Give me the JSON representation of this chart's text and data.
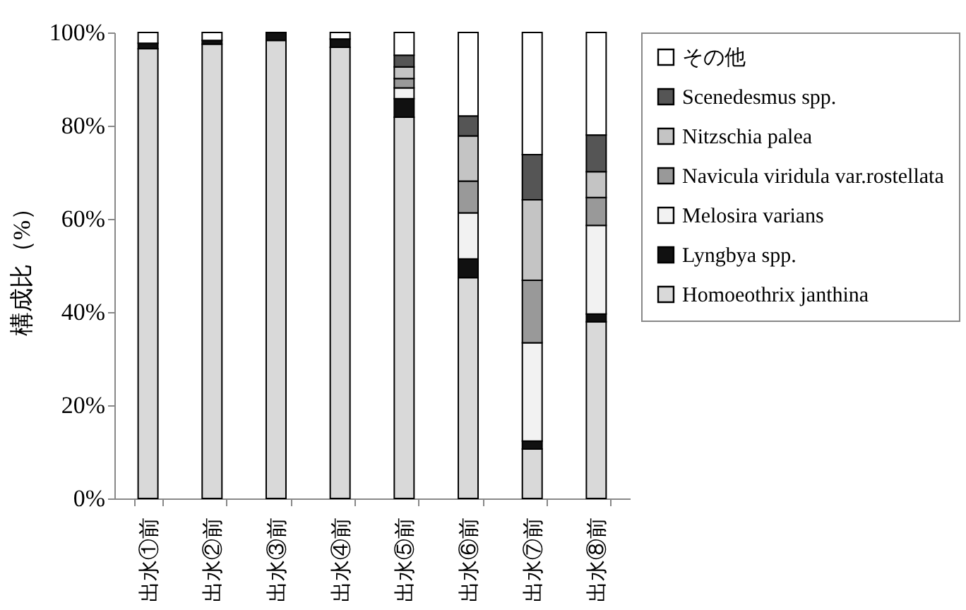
{
  "chart_data": {
    "type": "bar",
    "stacked": true,
    "ylabel": "構成比（%）",
    "categories": [
      "出水①前",
      "出水②前",
      "出水③前",
      "出水④前",
      "出水⑤前",
      "出水⑥前",
      "出水⑦前",
      "出水⑧前"
    ],
    "series": [
      {
        "name": "Homoeothrix janthina",
        "color": "#d9d9d9",
        "values": [
          96.5,
          97.5,
          98.3,
          96.8,
          81.8,
          47.4,
          10.6,
          37.9
        ]
      },
      {
        "name": "Lyngbya spp.",
        "color": "#111111",
        "values": [
          1.2,
          0.8,
          1.7,
          1.8,
          4.0,
          4.0,
          1.7,
          1.7
        ]
      },
      {
        "name": "Melosira varians",
        "color": "#f2f2f2",
        "values": [
          0,
          0,
          0,
          0,
          2.3,
          9.9,
          21.1,
          19.0
        ]
      },
      {
        "name": "Navicula viridula var.rostellata",
        "color": "#999999",
        "values": [
          0,
          0,
          0,
          0,
          2.0,
          6.8,
          13.4,
          6.0
        ]
      },
      {
        "name": "Nitzschia palea",
        "color": "#c4c4c4",
        "values": [
          0,
          0,
          0,
          0,
          2.5,
          9.7,
          17.3,
          5.5
        ]
      },
      {
        "name": "Scenedesmus spp.",
        "color": "#555555",
        "values": [
          0,
          0,
          0,
          0,
          2.5,
          4.3,
          9.7,
          7.9
        ]
      },
      {
        "name": "その他",
        "color": "#ffffff",
        "values": [
          2.3,
          1.7,
          0,
          1.4,
          4.9,
          17.9,
          26.2,
          22.0
        ]
      }
    ],
    "ylim": [
      0,
      100
    ],
    "yticks": [
      {
        "value": 0,
        "label": "0%"
      },
      {
        "value": 20,
        "label": "20%"
      },
      {
        "value": 40,
        "label": "40%"
      },
      {
        "value": 60,
        "label": "60%"
      },
      {
        "value": 80,
        "label": "80%"
      },
      {
        "value": 100,
        "label": "100%"
      }
    ],
    "grid": false,
    "legend": "right"
  }
}
